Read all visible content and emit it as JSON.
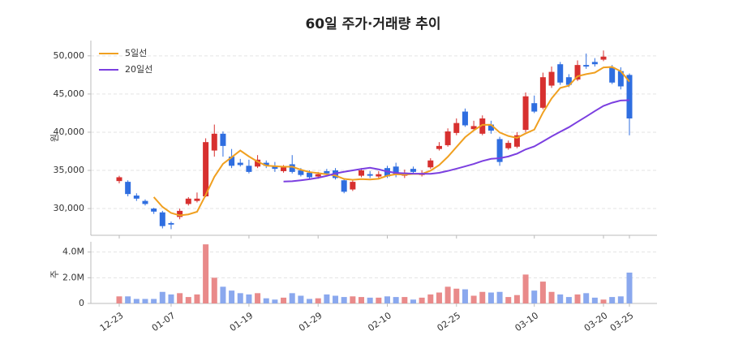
{
  "chart_data": [
    {
      "type": "candlestick",
      "title": "60일 주가·거래량 추이",
      "ylabel": "원",
      "categories": [
        "12-23",
        null,
        null,
        null,
        null,
        null,
        "01-07",
        null,
        null,
        null,
        null,
        null,
        null,
        null,
        null,
        "01-19",
        null,
        null,
        null,
        null,
        null,
        null,
        null,
        "01-29",
        null,
        null,
        null,
        null,
        null,
        null,
        null,
        "02-10",
        null,
        null,
        null,
        null,
        null,
        null,
        null,
        "02-25",
        null,
        null,
        null,
        null,
        null,
        null,
        null,
        null,
        "03-10",
        null,
        null,
        null,
        null,
        null,
        null,
        null,
        "03-20",
        null,
        null,
        "03-25"
      ],
      "open": [
        33600,
        33500,
        31700,
        31000,
        30000,
        29500,
        28100,
        28900,
        30600,
        31000,
        31600,
        37600,
        39800,
        36800,
        36000,
        35600,
        35500,
        36000,
        35600,
        34900,
        35800,
        35000,
        34700,
        34200,
        34900,
        35000,
        33700,
        32500,
        34300,
        34500,
        34200,
        35300,
        35500,
        34300,
        35200,
        34400,
        35400,
        37800,
        38300,
        39900,
        42700,
        40400,
        39800,
        41000,
        39100,
        37900,
        38100,
        40300,
        43800,
        43200,
        46100,
        48900,
        47200,
        46900,
        48800,
        49200,
        49500,
        48500,
        48000,
        47500
      ],
      "high": [
        34300,
        33700,
        32000,
        31200,
        30100,
        29700,
        28300,
        30000,
        31500,
        32100,
        39200,
        41000,
        40100,
        37800,
        36500,
        36400,
        37000,
        36300,
        36100,
        35700,
        37000,
        35300,
        35000,
        34800,
        35200,
        35300,
        33900,
        33800,
        35300,
        34900,
        34900,
        35600,
        36000,
        35100,
        35500,
        35000,
        36600,
        38700,
        40500,
        41800,
        43100,
        41500,
        42200,
        41500,
        39400,
        38900,
        40000,
        45200,
        44800,
        47800,
        48600,
        49200,
        47600,
        49400,
        50300,
        49700,
        50700,
        48800,
        48500,
        47700
      ],
      "low": [
        33300,
        31600,
        31000,
        30400,
        29300,
        27400,
        27300,
        28600,
        30400,
        30800,
        31500,
        36800,
        36800,
        35300,
        35500,
        34600,
        35300,
        35300,
        34800,
        34700,
        34600,
        34200,
        33900,
        33900,
        34300,
        33800,
        32000,
        32300,
        34100,
        34000,
        34000,
        34000,
        34100,
        34000,
        34600,
        34200,
        35200,
        37600,
        38100,
        39600,
        40700,
        40200,
        39600,
        39800,
        35600,
        37700,
        37900,
        40000,
        42500,
        43000,
        45800,
        46200,
        45900,
        46700,
        48300,
        48600,
        49300,
        46300,
        45600,
        39600
      ],
      "close": [
        34100,
        31900,
        31300,
        30600,
        29600,
        27700,
        27900,
        29700,
        31300,
        31300,
        38700,
        39800,
        38200,
        35600,
        35700,
        34800,
        36400,
        35600,
        35200,
        35400,
        34800,
        34400,
        34100,
        34500,
        34600,
        34000,
        32200,
        33500,
        35000,
        34300,
        34500,
        34200,
        34500,
        34700,
        34800,
        34500,
        36300,
        38200,
        40100,
        41200,
        40900,
        40800,
        41800,
        40200,
        36100,
        38600,
        39600,
        44700,
        42700,
        47200,
        47900,
        46500,
        46200,
        48800,
        48600,
        48900,
        49900,
        46500,
        46000,
        41800
      ],
      "up_color": "#d7302f",
      "down_color": "#2f6ee0",
      "series": [
        {
          "name": "5일선",
          "color": "#f0a020",
          "values": [
            null,
            null,
            null,
            null,
            31500,
            30220,
            29420,
            29100,
            29240,
            29580,
            31780,
            34160,
            35860,
            36720,
            37600,
            36820,
            36140,
            35620,
            35540,
            35480,
            35480,
            35080,
            34780,
            34640,
            34480,
            34320,
            33880,
            33760,
            33860,
            33800,
            33900,
            34300,
            34500,
            34440,
            34540,
            34540,
            34960,
            35700,
            36780,
            38060,
            39340,
            40240,
            40960,
            40980,
            39960,
            39500,
            39260,
            39840,
            40340,
            42560,
            44420,
            45800,
            46100,
            47320,
            47600,
            47800,
            48480,
            48540,
            47980,
            46620
          ]
        },
        {
          "name": "20일선",
          "color": "#7b3fe0",
          "values": [
            null,
            null,
            null,
            null,
            null,
            null,
            null,
            null,
            null,
            null,
            null,
            null,
            null,
            null,
            null,
            null,
            null,
            null,
            null,
            33540,
            33575,
            33700,
            33840,
            34035,
            34285,
            34600,
            34815,
            35005,
            35190,
            35340,
            35130,
            34850,
            34665,
            34620,
            34575,
            34560,
            34555,
            34685,
            34930,
            35220,
            35525,
            35845,
            36230,
            36515,
            36590,
            36820,
            37190,
            37750,
            38135,
            38780,
            39450,
            40065,
            40650,
            41355,
            42045,
            42765,
            43445,
            43860,
            44155,
            44185
          ]
        }
      ],
      "legend": "upper left",
      "grid": true,
      "ylim": [
        26500,
        52000
      ],
      "yticks": [
        {
          "value": 30000,
          "label": "30,000"
        },
        {
          "value": 35000,
          "label": "35,000"
        },
        {
          "value": 40000,
          "label": "40,000"
        },
        {
          "value": 45000,
          "label": "45,000"
        },
        {
          "value": 50000,
          "label": "50,000"
        }
      ]
    },
    {
      "type": "bar",
      "ylabel": "주",
      "values": [
        550000,
        550000,
        350000,
        350000,
        350000,
        900000,
        700000,
        800000,
        500000,
        700000,
        4600000,
        2000000,
        1300000,
        1000000,
        800000,
        700000,
        800000,
        400000,
        300000,
        450000,
        800000,
        600000,
        350000,
        400000,
        700000,
        600000,
        500000,
        550000,
        500000,
        450000,
        450000,
        550000,
        500000,
        500000,
        300000,
        450000,
        700000,
        850000,
        1300000,
        1150000,
        1100000,
        600000,
        900000,
        850000,
        900000,
        500000,
        650000,
        2250000,
        1000000,
        1700000,
        900000,
        700000,
        500000,
        700000,
        800000,
        450000,
        300000,
        500000,
        550000,
        2400000
      ],
      "up_color": "#e98a8a",
      "down_color": "#8aa8ee",
      "grid": true,
      "ylim": [
        0,
        4800000
      ],
      "yticks": [
        0,
        {
          "value": 2000000,
          "label": "2.0M"
        },
        {
          "value": 4000000,
          "label": "4.0M"
        }
      ]
    }
  ]
}
